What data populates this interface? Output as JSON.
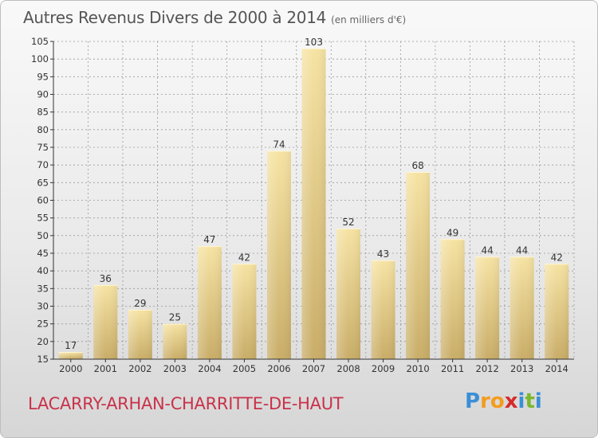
{
  "title": "Autres Revenus Divers de 2000 à 2014",
  "subtitle": "(en milliers d'€)",
  "place_name": "LACARRY-ARHAN-CHARRITTE-DE-HAUT",
  "logo": {
    "letters": [
      "P",
      "r",
      "o",
      "x",
      "i",
      "t",
      "i"
    ],
    "colors": [
      "#3a8fd6",
      "#f39c1f",
      "#f39c1f",
      "#d62b2b",
      "#3a8fd6",
      "#7ab82e",
      "#3a8fd6"
    ]
  },
  "colors": {
    "bar_light": "#f6e3a3",
    "bar_dark": "#c9ad68",
    "axis": "#333333",
    "grid": "#999999"
  },
  "chart_data": {
    "type": "bar",
    "categories": [
      "2000",
      "2001",
      "2002",
      "2003",
      "2004",
      "2005",
      "2006",
      "2007",
      "2008",
      "2009",
      "2010",
      "2011",
      "2012",
      "2013",
      "2014"
    ],
    "values": [
      17,
      36,
      29,
      25,
      47,
      42,
      74,
      103,
      52,
      43,
      68,
      49,
      44,
      44,
      42
    ],
    "ylim": [
      15,
      105
    ],
    "yticks": [
      15,
      20,
      25,
      30,
      35,
      40,
      45,
      50,
      55,
      60,
      65,
      70,
      75,
      80,
      85,
      90,
      95,
      100,
      105
    ],
    "grid": true,
    "xlabel": "",
    "ylabel": ""
  }
}
